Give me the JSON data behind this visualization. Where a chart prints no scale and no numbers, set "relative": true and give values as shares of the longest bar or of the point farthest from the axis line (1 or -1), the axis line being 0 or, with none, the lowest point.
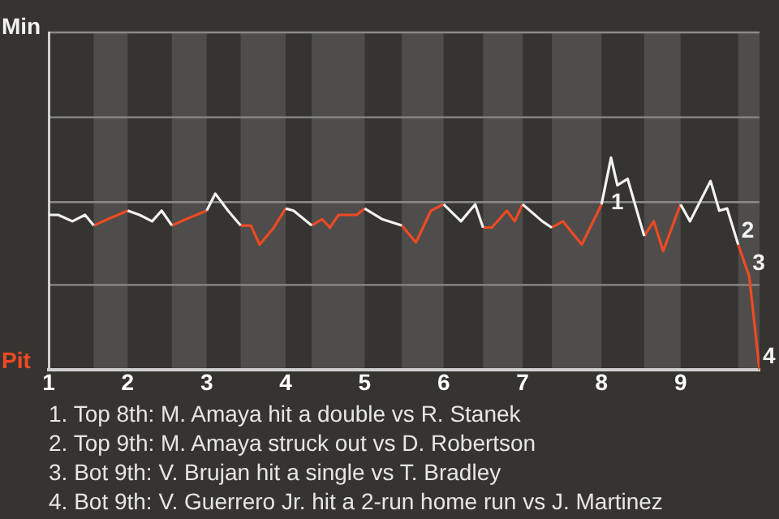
{
  "chart_data": {
    "type": "line",
    "relative": true,
    "x": [
      1.0,
      1.12,
      1.3,
      1.46,
      1.57,
      1.75,
      2.0,
      2.15,
      2.31,
      2.43,
      2.56,
      2.74,
      3.0,
      3.11,
      3.27,
      3.43,
      3.56,
      3.67,
      3.85,
      4.0,
      4.1,
      4.33,
      4.46,
      4.56,
      4.67,
      4.9,
      5.0,
      5.22,
      5.47,
      5.65,
      5.84,
      6.0,
      6.22,
      6.4,
      6.5,
      6.61,
      6.8,
      6.9,
      7.0,
      7.25,
      7.37,
      7.51,
      7.75,
      8.0,
      8.12,
      8.2,
      8.33,
      8.54,
      8.66,
      8.78,
      9.0,
      9.12,
      9.38,
      9.49,
      9.59,
      9.73,
      9.87,
      10.0
    ],
    "series": [
      {
        "name": "Min",
        "color": "#f2f2f2",
        "values": [
          0.73,
          0.73,
          0.7,
          0.73,
          0.68,
          null,
          0.75,
          0.73,
          0.7,
          0.75,
          0.68,
          null,
          0.75,
          0.83,
          0.75,
          0.68,
          null,
          null,
          null,
          0.76,
          0.75,
          0.68,
          null,
          null,
          null,
          null,
          0.76,
          0.71,
          0.68,
          null,
          null,
          0.78,
          0.7,
          0.78,
          0.67,
          null,
          null,
          null,
          0.78,
          0.7,
          0.67,
          null,
          null,
          0.78,
          1,
          0.87,
          0.9,
          0.63,
          null,
          null,
          0.78,
          0.7,
          0.89,
          0.75,
          0.76,
          0.59,
          null,
          null
        ]
      },
      {
        "name": "Pit",
        "color": "#f04a23",
        "values": [
          null,
          null,
          null,
          null,
          0.68,
          0.71,
          0.75,
          null,
          null,
          null,
          0.68,
          0.71,
          0.75,
          null,
          null,
          0.68,
          0.68,
          0.59,
          0.67,
          0.76,
          null,
          0.68,
          0.71,
          0.67,
          0.73,
          0.73,
          0.76,
          null,
          0.68,
          0.6,
          0.75,
          0.78,
          null,
          null,
          0.67,
          0.67,
          0.75,
          0.7,
          0.78,
          null,
          0.67,
          0.7,
          0.59,
          0.78,
          null,
          null,
          null,
          0.63,
          0.7,
          0.56,
          0.78,
          null,
          null,
          null,
          null,
          0.59,
          0.44,
          0
        ]
      }
    ],
    "xlim": [
      1,
      10
    ],
    "xticks": [
      1,
      2,
      3,
      4,
      5,
      6,
      7,
      8,
      9
    ],
    "ref_lines": [
      {
        "axis": "y",
        "value": 0.4,
        "color": "#8a8a8a"
      },
      {
        "axis": "y",
        "value": 0.79,
        "color": "#8a8a8a"
      },
      {
        "axis": "y",
        "value": 1.19,
        "color": "#8a8a8a"
      },
      {
        "axis": "y",
        "value": 1.59,
        "color": "#8a8a8a"
      }
    ],
    "marker": "none",
    "bands": [
      {
        "axis": "x",
        "from": 1.57,
        "to": 2.0,
        "color": "#4e4d4b"
      },
      {
        "axis": "x",
        "from": 2.56,
        "to": 3.0,
        "color": "#4e4d4b"
      },
      {
        "axis": "x",
        "from": 3.43,
        "to": 4.0,
        "color": "#4e4d4b"
      },
      {
        "axis": "x",
        "from": 4.33,
        "to": 5.0,
        "color": "#4e4d4b"
      },
      {
        "axis": "x",
        "from": 5.47,
        "to": 6.0,
        "color": "#4e4d4b"
      },
      {
        "axis": "x",
        "from": 6.5,
        "to": 7.0,
        "color": "#4e4d4b"
      },
      {
        "axis": "x",
        "from": 7.37,
        "to": 8.0,
        "color": "#4e4d4b"
      },
      {
        "axis": "x",
        "from": 8.54,
        "to": 9.0,
        "color": "#4e4d4b"
      },
      {
        "axis": "x",
        "from": 9.73,
        "to": 10.0,
        "color": "#4e4d4b"
      }
    ],
    "annotations": [
      {
        "text": "1",
        "x": 8.2,
        "y": 0.87
      },
      {
        "text": "2",
        "x": 9.73,
        "y": 0.59
      },
      {
        "text": "3",
        "x": 9.87,
        "y": 0.44
      },
      {
        "text": "4",
        "x": 10.0,
        "y": 0
      },
      "1. Top 8th: M. Amaya hit a double vs R. Stanek",
      "2. Top 9th: M. Amaya struck out vs D. Robertson",
      "3. Bot 9th: V. Brujan hit a single vs T. Bradley",
      "4. Bot 9th: V. Guerrero Jr. hit a 2-run home run vs J. Martinez"
    ]
  }
}
